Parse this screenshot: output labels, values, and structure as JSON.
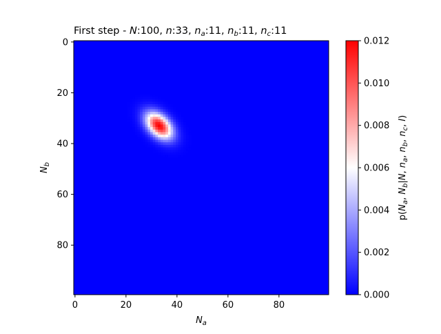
{
  "chart_data": {
    "type": "heatmap",
    "title": {
      "prefix": "First step  -  ",
      "N_sym": "N",
      "N_val": ":100,  ",
      "n_sym": "n",
      "n_val": ":33, ",
      "na_sym": "n",
      "na_sub": "a",
      "na_val": ":11, ",
      "nb_sym": "n",
      "nb_sub": "b",
      "nb_val": ":11, ",
      "nc_sym": "n",
      "nc_sub": "c",
      "nc_val": ":11"
    },
    "xlabel": {
      "sym": "N",
      "sub": "a"
    },
    "ylabel": {
      "sym": "N",
      "sub": "b"
    },
    "colorbar_label": "p(Na, Nb|N, na, nb, nc, I)",
    "colorbar_label_parts": [
      {
        "t": "p(",
        "style": "normal"
      },
      {
        "t": "N",
        "style": "italic"
      },
      {
        "t": "a",
        "style": "sub"
      },
      {
        "t": ", ",
        "style": "normal"
      },
      {
        "t": "N",
        "style": "italic"
      },
      {
        "t": "b",
        "style": "sub"
      },
      {
        "t": "|",
        "style": "normal"
      },
      {
        "t": "N",
        "style": "italic"
      },
      {
        "t": ", ",
        "style": "normal"
      },
      {
        "t": "n",
        "style": "italic"
      },
      {
        "t": "a",
        "style": "sub"
      },
      {
        "t": ", ",
        "style": "normal"
      },
      {
        "t": "n",
        "style": "italic"
      },
      {
        "t": "b",
        "style": "sub"
      },
      {
        "t": ", ",
        "style": "normal"
      },
      {
        "t": "n",
        "style": "italic"
      },
      {
        "t": "c",
        "style": "sub"
      },
      {
        "t": ", ",
        "style": "normal"
      },
      {
        "t": "I",
        "style": "italic"
      },
      {
        "t": ")",
        "style": "normal"
      }
    ],
    "x_range": [
      0,
      99
    ],
    "y_range": [
      0,
      99
    ],
    "y_inverted": true,
    "x_ticks": [
      0,
      20,
      40,
      60,
      80
    ],
    "y_ticks": [
      0,
      20,
      40,
      60,
      80
    ],
    "colorbar_ticks": [
      "0.000",
      "0.002",
      "0.004",
      "0.006",
      "0.008",
      "0.010",
      "0.012"
    ],
    "colorbar_range": [
      0,
      0.012
    ],
    "colormap": {
      "low": "#0000ff",
      "mid": "#ffffff",
      "high": "#ff0000"
    },
    "peak": {
      "Na": 33,
      "Nb": 33,
      "value": 0.012
    },
    "spread": {
      "sigma_Na": 3.6,
      "sigma_Nb": 3.6,
      "correlation": 0.45
    }
  }
}
